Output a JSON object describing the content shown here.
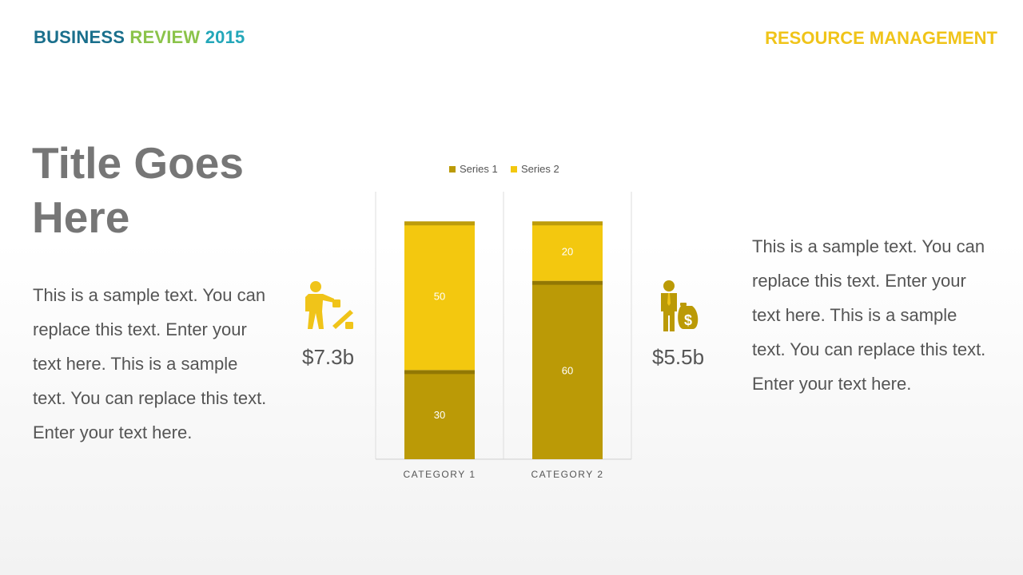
{
  "header": {
    "brand_part1": "BUSINESS",
    "brand_part2": "REVIEW",
    "brand_part3": "2015",
    "section": "RESOURCE MANAGEMENT"
  },
  "colors": {
    "brand1": "#1a6f8c",
    "brand2": "#8bc34a",
    "brand3": "#23a7b9",
    "section": "#f0c419",
    "series1": "#bb9a06",
    "series2": "#f3c80f",
    "icon_light": "#f0c419",
    "icon_dark": "#bb9a06"
  },
  "main": {
    "title": "Title Goes Here",
    "left_text": "This is a sample text. You can replace this text. Enter your text here. This is a sample text. You can replace this text. Enter your text here.",
    "right_text": "This is a sample text. You can replace this text. Enter your text here. This is a sample text. You can replace this text. Enter your text here.",
    "stat_left": "$7.3b",
    "stat_right": "$5.5b",
    "icon_left": "businessman-percent-icon",
    "icon_right": "businessman-money-bag-icon"
  },
  "chart_data": {
    "type": "bar",
    "stacked": true,
    "categories": [
      "CATEGORY 1",
      "CATEGORY 2"
    ],
    "series": [
      {
        "name": "Series 1",
        "values": [
          30,
          60
        ]
      },
      {
        "name": "Series 2",
        "values": [
          50,
          20
        ]
      }
    ],
    "ylim": [
      0,
      90
    ],
    "legend": "top",
    "grid": false,
    "data_labels": true
  }
}
